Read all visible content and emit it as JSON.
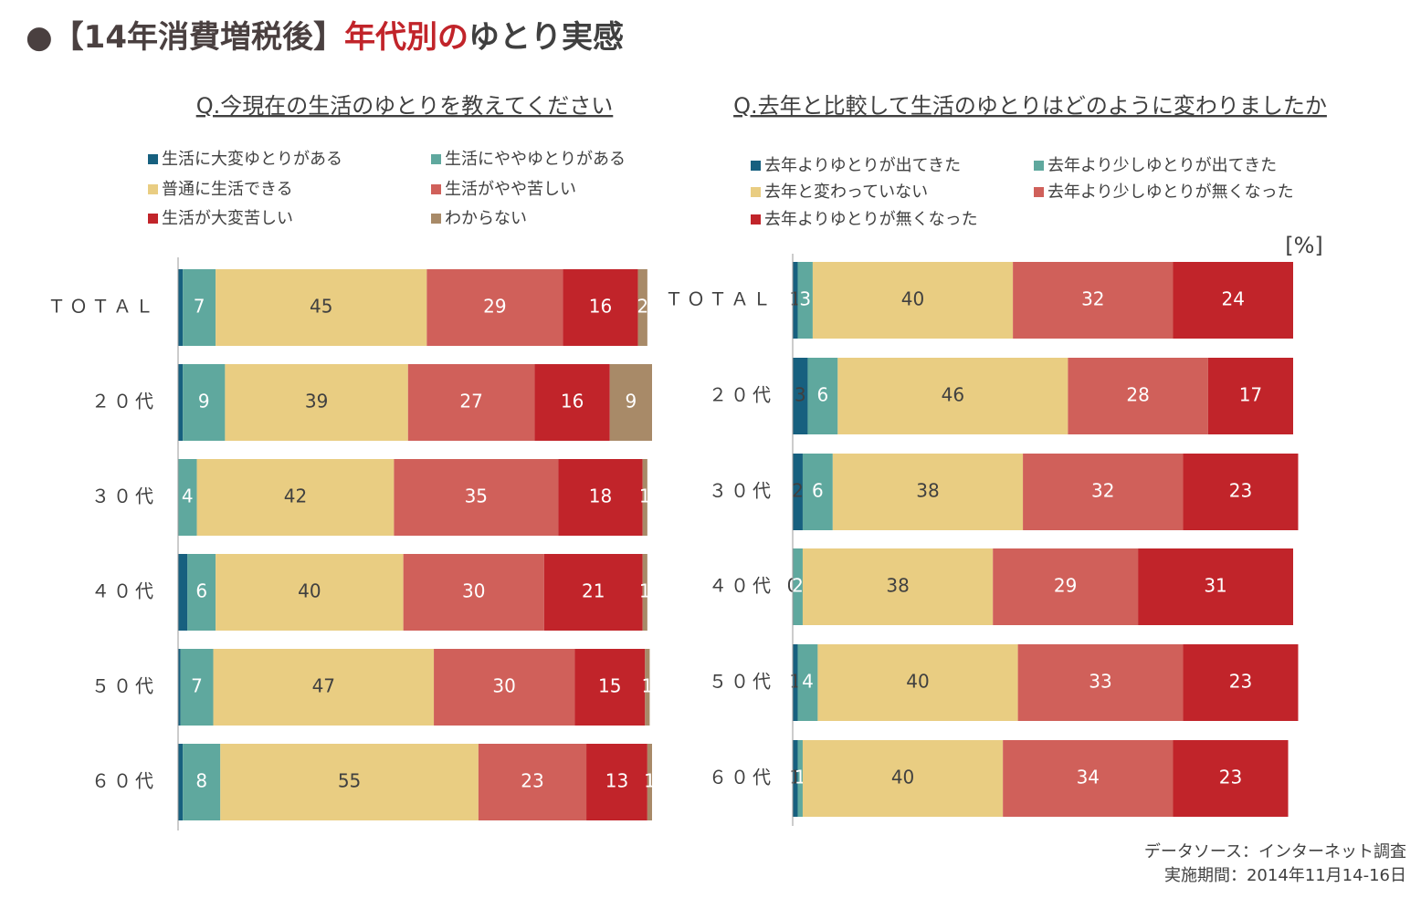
{
  "header": {
    "title_prefix": "●【14年消費増税後】",
    "title_highlight": "年代別の",
    "title_suffix": "ゆとり実感"
  },
  "footer": [
    "データソース：インターネット調査",
    "実施期間：2014年11月14-16日"
  ],
  "chart_data": [
    {
      "type": "stacked-bar",
      "subtitle": "Q.今現在の生活のゆとりを教えてください",
      "categories": [
        "ＴＯＴＡＬ",
        "２０代",
        "３０代",
        "４０代",
        "５０代",
        "６０代"
      ],
      "xlim": [
        0,
        101
      ],
      "series": [
        {
          "name": "生活に大変ゆとりがある",
          "color": "#17607f",
          "label_color": "#ffffff",
          "labels": false,
          "values": [
            1,
            1,
            0,
            2,
            0.5,
            1
          ]
        },
        {
          "name": "生活にややゆとりがある",
          "color": "#5fa89e",
          "label_color": "#ffffff",
          "labels": true,
          "values": [
            7,
            9,
            4,
            6,
            7,
            8
          ]
        },
        {
          "name": "普通に生活できる",
          "color": "#e9cd82",
          "label_color": "#404040",
          "labels": true,
          "values": [
            45,
            39,
            42,
            40,
            47,
            55
          ]
        },
        {
          "name": "生活がやや苦しい",
          "color": "#d0605a",
          "label_color": "#ffffff",
          "labels": true,
          "values": [
            29,
            27,
            35,
            30,
            30,
            23
          ]
        },
        {
          "name": "生活が大変苦しい",
          "color": "#c1242a",
          "label_color": "#ffffff",
          "labels": true,
          "values": [
            16,
            16,
            18,
            21,
            15,
            13
          ]
        },
        {
          "name": "わからない",
          "color": "#a88a68",
          "label_color": "#ffffff",
          "labels": true,
          "values": [
            2,
            9,
            1,
            1,
            1,
            1
          ]
        }
      ]
    },
    {
      "type": "stacked-bar",
      "subtitle": "Q.去年と比較して生活のゆとりはどのように変わりましたか",
      "unit": "[%]",
      "categories": [
        "ＴＯＴＡＬ",
        "２０代",
        "３０代",
        "４０代",
        "５０代",
        "６０代"
      ],
      "xlim": [
        0,
        100
      ],
      "series": [
        {
          "name": "去年よりゆとりが出てきた",
          "color": "#17607f",
          "label_color": "#404040",
          "labels": true,
          "values": [
            1,
            3,
            2,
            0,
            1,
            1
          ]
        },
        {
          "name": "去年より少しゆとりが出てきた",
          "color": "#5fa89e",
          "label_color": "#ffffff",
          "labels": true,
          "values": [
            3,
            6,
            6,
            2,
            4,
            1
          ]
        },
        {
          "name": "去年と変わっていない",
          "color": "#e9cd82",
          "label_color": "#404040",
          "labels": true,
          "values": [
            40,
            46,
            38,
            38,
            40,
            40
          ]
        },
        {
          "name": "去年より少しゆとりが無くなった",
          "color": "#d0605a",
          "label_color": "#ffffff",
          "labels": true,
          "values": [
            32,
            28,
            32,
            29,
            33,
            34
          ]
        },
        {
          "name": "去年よりゆとりが無くなった",
          "color": "#c1242a",
          "label_color": "#ffffff",
          "labels": true,
          "values": [
            24,
            17,
            23,
            31,
            23,
            23
          ]
        }
      ]
    }
  ]
}
